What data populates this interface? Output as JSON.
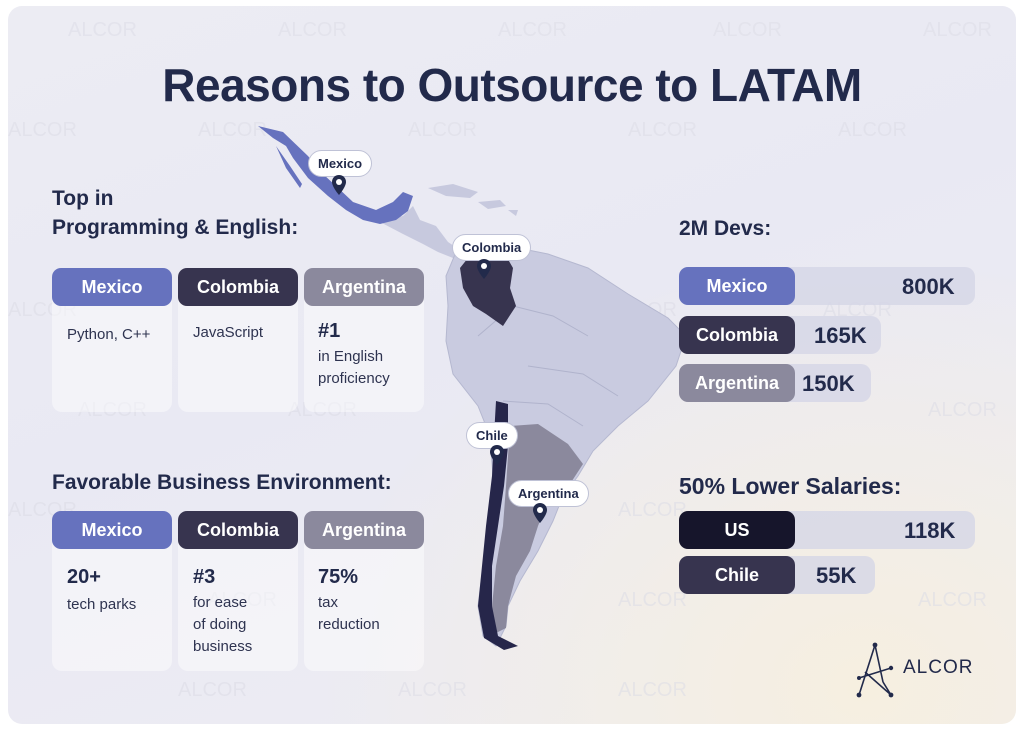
{
  "title": "Reasons to Outsource to LATAM",
  "watermark_text": "ALCOR",
  "brand": {
    "name": "ALCOR"
  },
  "colors": {
    "mexico": "#6672be",
    "colombia": "#37344f",
    "argentina": "#8b899d",
    "us": "#16152b",
    "chile": "#37344f",
    "text": "#222a4b"
  },
  "section_programming": {
    "heading": "Top in\nProgramming & English:",
    "columns": [
      {
        "country": "Mexico",
        "lines": [
          "Python, C++"
        ]
      },
      {
        "country": "Colombia",
        "lines": [
          "JavaScript"
        ]
      },
      {
        "country": "Argentina",
        "highlight": "#1",
        "lines": [
          "in English",
          "proficiency"
        ]
      }
    ]
  },
  "section_business": {
    "heading": "Favorable Business Environment:",
    "columns": [
      {
        "country": "Mexico",
        "highlight": "20+",
        "text": "tech parks"
      },
      {
        "country": "Colombia",
        "highlight": "#3",
        "text": "for ease\nof doing\nbusiness"
      },
      {
        "country": "Argentina",
        "highlight": "75%",
        "text": "tax\nreduction"
      }
    ]
  },
  "devs": {
    "heading": "2M Devs:",
    "rows": [
      {
        "country": "Mexico",
        "value": "800K"
      },
      {
        "country": "Colombia",
        "value": "165K"
      },
      {
        "country": "Argentina",
        "value": "150K"
      }
    ]
  },
  "salaries": {
    "heading": "50% Lower Salaries:",
    "rows": [
      {
        "country": "US",
        "value": "118K"
      },
      {
        "country": "Chile",
        "value": "55K"
      }
    ]
  },
  "map": {
    "labels": {
      "mexico": "Mexico",
      "colombia": "Colombia",
      "chile": "Chile",
      "argentina": "Argentina"
    }
  }
}
